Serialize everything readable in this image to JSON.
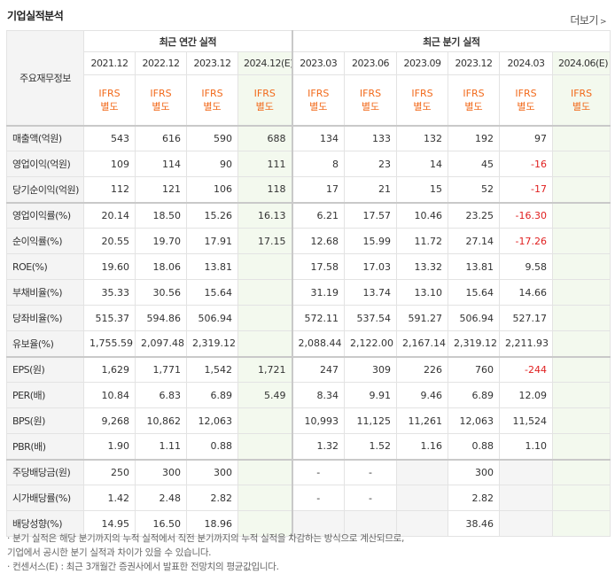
{
  "title": "기업실적분석",
  "more_label": "더보기",
  "header": {
    "corner": "주요재무정보",
    "annual_group": "최근 연간 실적",
    "quarter_group": "최근 분기 실적",
    "periods": [
      "2021.12",
      "2022.12",
      "2023.12",
      "2024.12(E)",
      "2023.03",
      "2023.06",
      "2023.09",
      "2023.12",
      "2024.03",
      "2024.06(E)"
    ],
    "ifrs": "IFRS",
    "ifrs_sub": "별도"
  },
  "rows": [
    {
      "label": "매출액(억원)",
      "values": [
        "543",
        "616",
        "590",
        "688",
        "134",
        "133",
        "132",
        "192",
        "97",
        ""
      ]
    },
    {
      "label": "영업이익(억원)",
      "values": [
        "109",
        "114",
        "90",
        "111",
        "8",
        "23",
        "14",
        "45",
        "-16",
        ""
      ]
    },
    {
      "label": "당기순이익(억원)",
      "values": [
        "112",
        "121",
        "106",
        "118",
        "17",
        "21",
        "15",
        "52",
        "-17",
        ""
      ]
    },
    {
      "label": "영업이익률(%)",
      "values": [
        "20.14",
        "18.50",
        "15.26",
        "16.13",
        "6.21",
        "17.57",
        "10.46",
        "23.25",
        "-16.30",
        ""
      ]
    },
    {
      "label": "순이익률(%)",
      "values": [
        "20.55",
        "19.70",
        "17.91",
        "17.15",
        "12.68",
        "15.99",
        "11.72",
        "27.14",
        "-17.26",
        ""
      ]
    },
    {
      "label": "ROE(%)",
      "values": [
        "19.60",
        "18.06",
        "13.81",
        "",
        "17.58",
        "17.03",
        "13.32",
        "13.81",
        "9.58",
        ""
      ]
    },
    {
      "label": "부채비율(%)",
      "values": [
        "35.33",
        "30.56",
        "15.64",
        "",
        "31.19",
        "13.74",
        "13.10",
        "15.64",
        "14.66",
        ""
      ]
    },
    {
      "label": "당좌비율(%)",
      "values": [
        "515.37",
        "594.86",
        "506.94",
        "",
        "572.11",
        "537.54",
        "591.27",
        "506.94",
        "527.17",
        ""
      ]
    },
    {
      "label": "유보율(%)",
      "values": [
        "1,755.59",
        "2,097.48",
        "2,319.12",
        "",
        "2,088.44",
        "2,122.00",
        "2,167.14",
        "2,319.12",
        "2,211.93",
        ""
      ]
    },
    {
      "label": "EPS(원)",
      "values": [
        "1,629",
        "1,771",
        "1,542",
        "1,721",
        "247",
        "309",
        "226",
        "760",
        "-244",
        ""
      ]
    },
    {
      "label": "PER(배)",
      "values": [
        "10.84",
        "6.83",
        "6.89",
        "5.49",
        "8.34",
        "9.91",
        "9.46",
        "6.89",
        "12.09",
        ""
      ]
    },
    {
      "label": "BPS(원)",
      "values": [
        "9,268",
        "10,862",
        "12,063",
        "",
        "10,993",
        "11,125",
        "11,261",
        "12,063",
        "11,524",
        ""
      ]
    },
    {
      "label": "PBR(배)",
      "values": [
        "1.90",
        "1.11",
        "0.88",
        "",
        "1.32",
        "1.52",
        "1.16",
        "0.88",
        "1.10",
        ""
      ]
    },
    {
      "label": "주당배당금(원)",
      "values": [
        "250",
        "300",
        "300",
        "",
        "-",
        "-",
        "",
        "300",
        "",
        ""
      ]
    },
    {
      "label": "시가배당률(%)",
      "values": [
        "1.42",
        "2.48",
        "2.82",
        "",
        "-",
        "-",
        "",
        "2.82",
        "",
        ""
      ]
    },
    {
      "label": "배당성향(%)",
      "values": [
        "14.95",
        "16.50",
        "18.96",
        "",
        "",
        "",
        "",
        "38.46",
        "",
        ""
      ]
    }
  ],
  "notes": [
    "· 분기 실적은 해당 분기까지의 누적 실적에서 직전 분기까지의 누적 실적을 차감하는 방식으로 계산되므로,",
    "  기업에서 공시한 분기 실적과 차이가 있을 수 있습니다.",
    "· 컨센서스(E) : 최근 3개월간 증권사에서 발표한 전망치의 평균값입니다."
  ]
}
